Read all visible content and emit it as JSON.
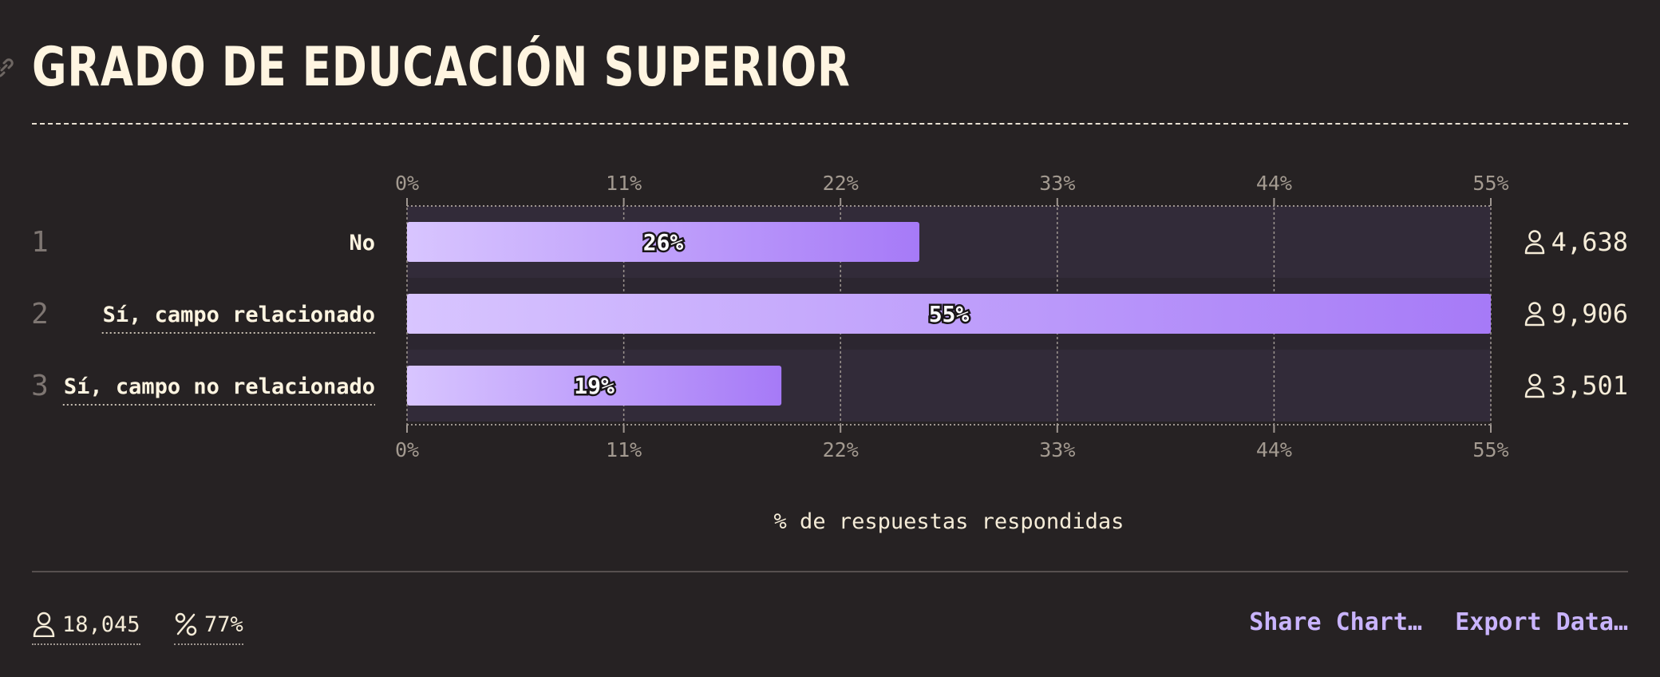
{
  "page": {
    "title": "GRADO DE EDUCACIÓN SUPERIOR"
  },
  "chart_data": {
    "type": "bar",
    "orientation": "horizontal",
    "categories": [
      "No",
      "Sí, campo relacionado",
      "Sí, campo no relacionado"
    ],
    "rank_labels": [
      "1",
      "2",
      "3"
    ],
    "values": [
      26,
      55,
      19
    ],
    "value_labels": [
      "26%",
      "55%",
      "19%"
    ],
    "counts": [
      "4,638",
      "9,906",
      "3,501"
    ],
    "xticks": [
      "0%",
      "11%",
      "22%",
      "33%",
      "44%",
      "55%"
    ],
    "xlim": [
      0,
      55
    ],
    "xlabel": "% de respuestas respondidas",
    "grid": true,
    "legend": "none",
    "colors": {
      "bar_start": "#d8c5ff",
      "bar_end": "#a67af7",
      "track": "#322b39",
      "grid": "#9e9690",
      "tick_text": "#a39a90",
      "rank_text": "#7e7672",
      "label_text": "#fff5e1"
    }
  },
  "footer": {
    "respondents": "18,045",
    "response_rate": "77%",
    "share_label": "Share Chart…",
    "export_label": "Export Data…",
    "action_color": "#c9b4fd"
  }
}
